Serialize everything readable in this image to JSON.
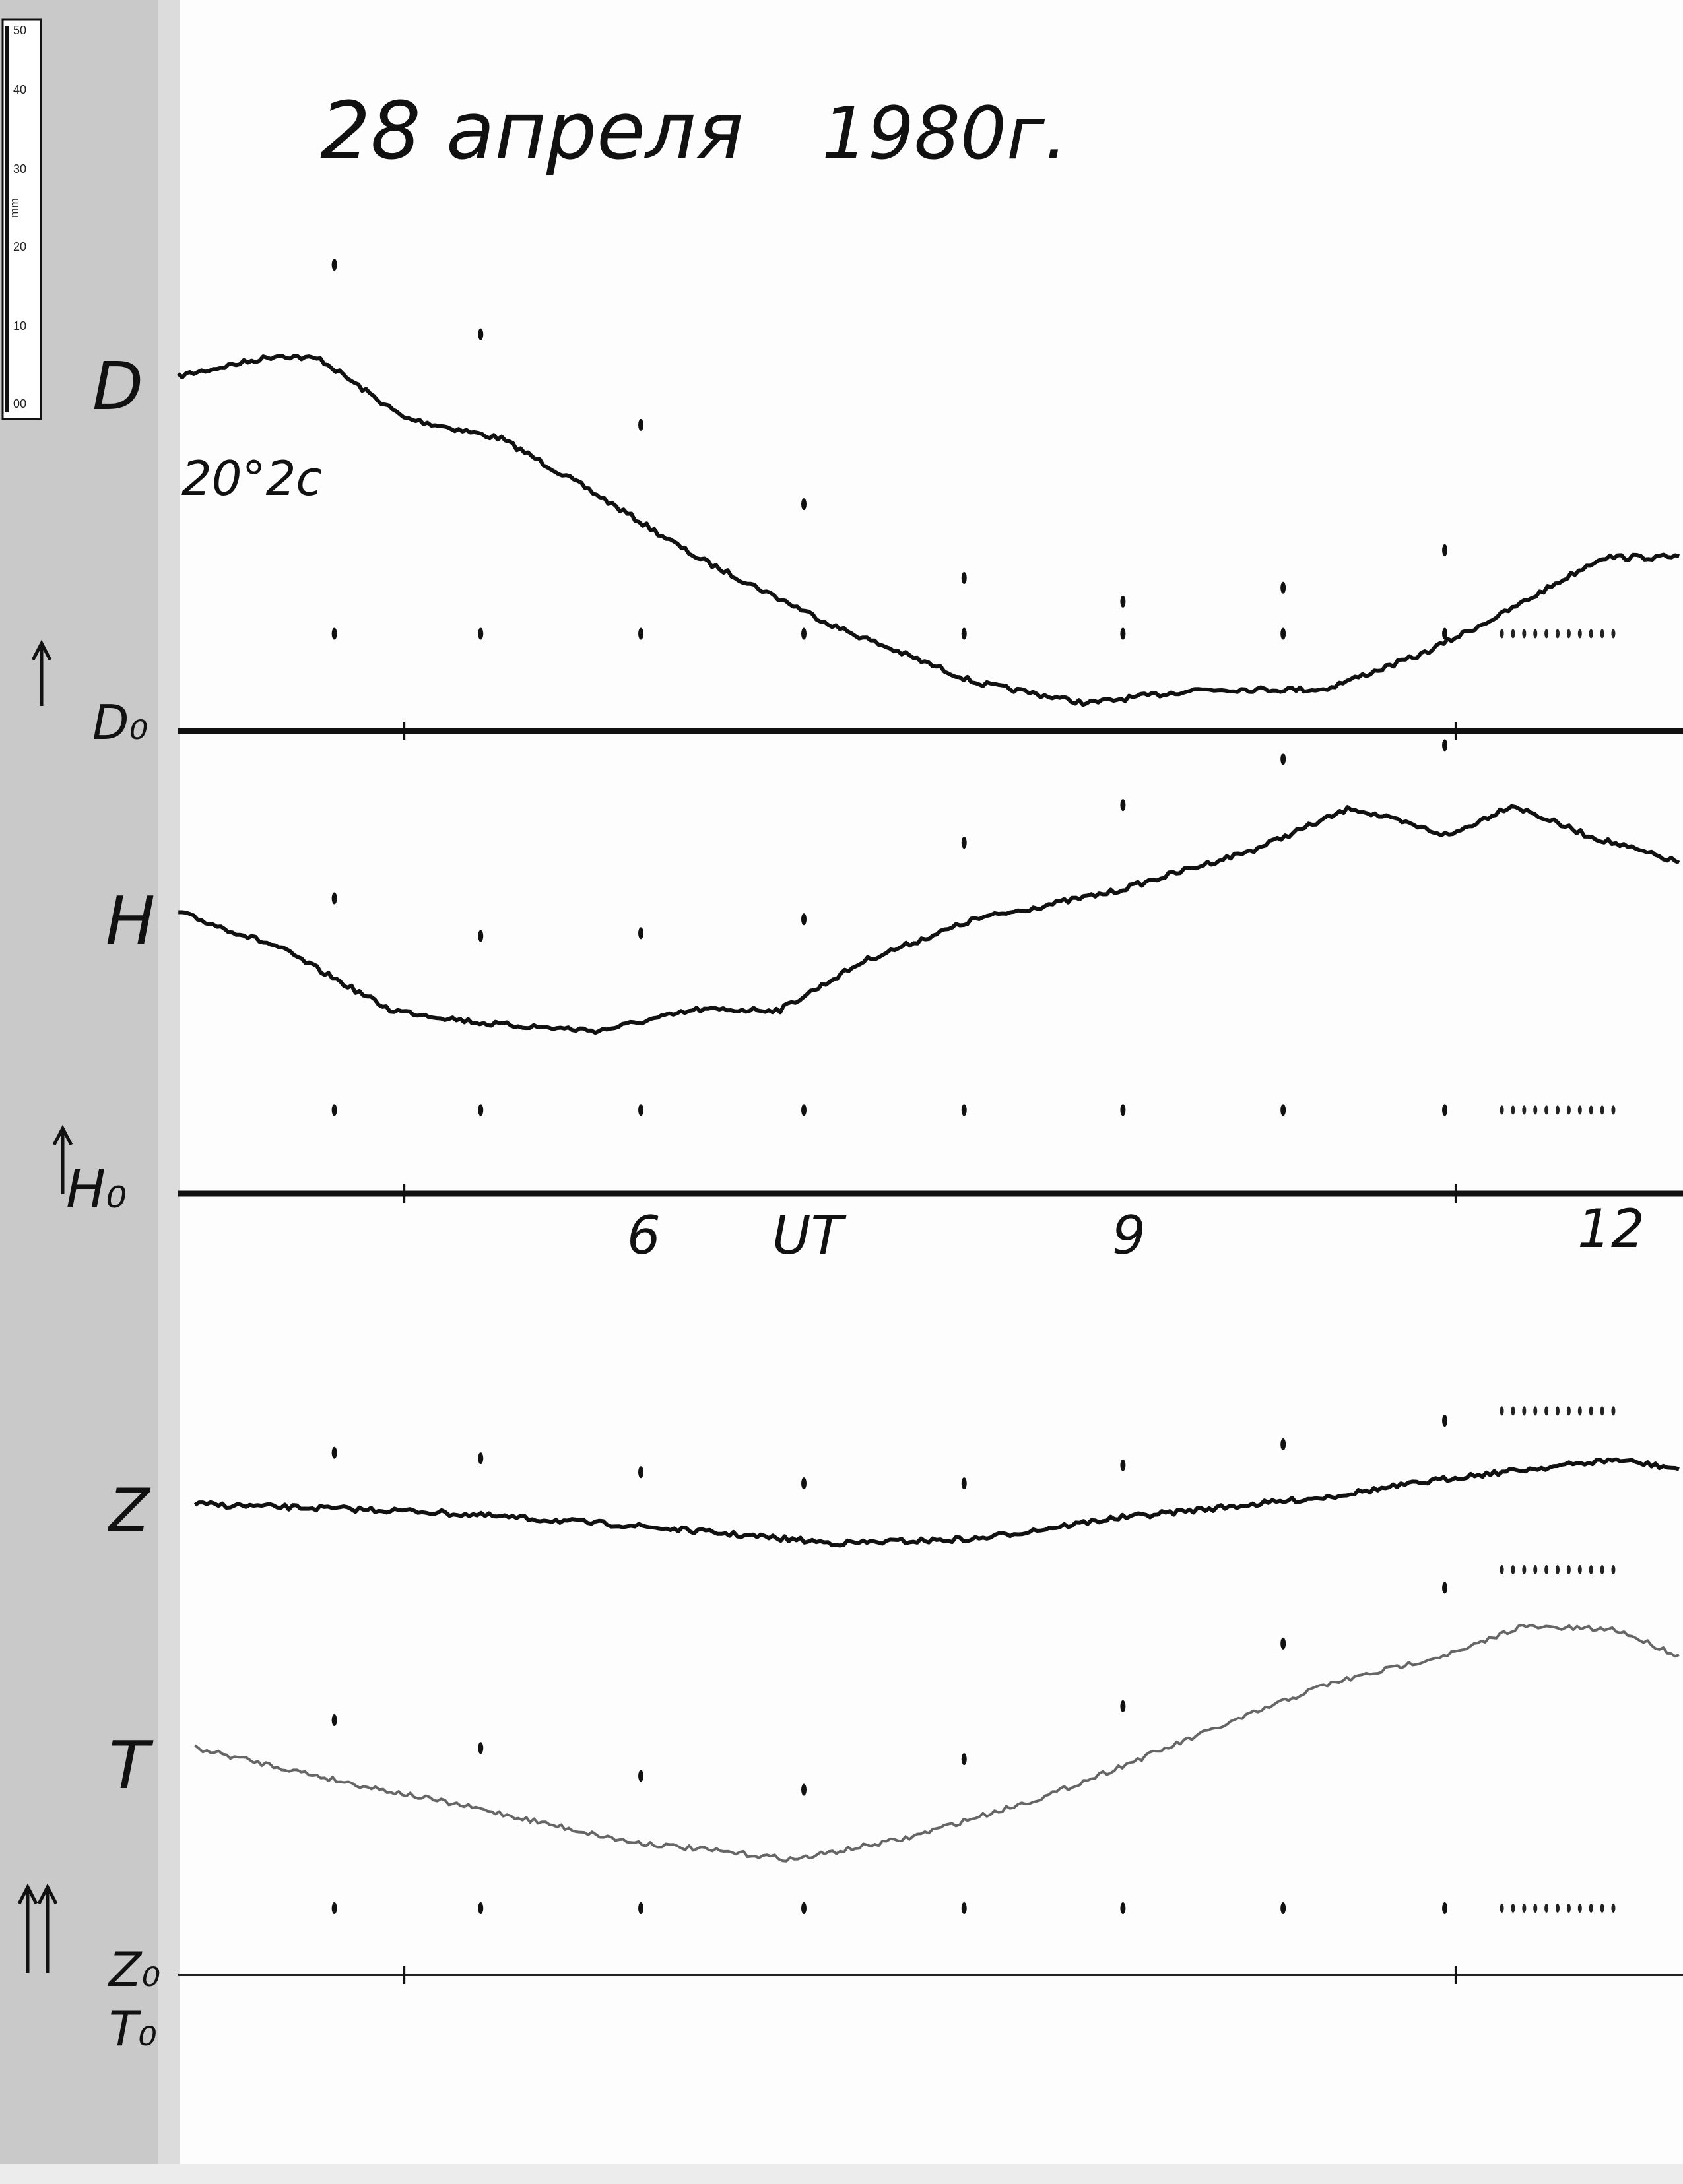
{
  "header": {
    "date": "28 апреля",
    "year": "1980г."
  },
  "ruler": {
    "ticks": [
      "50",
      "40",
      "30",
      "20",
      "10",
      "00"
    ],
    "unit": "mm"
  },
  "traces": {
    "D": {
      "label": "D",
      "scale": "20°2c",
      "baseline": "D₀"
    },
    "H": {
      "label": "H",
      "baseline": "H₀"
    },
    "Z": {
      "label": "Z",
      "baseline": "Z₀"
    },
    "T": {
      "label": "T",
      "baseline": "T₀"
    }
  },
  "time_axis": {
    "labels": [
      "6",
      "UT",
      "9",
      "12"
    ]
  }
}
